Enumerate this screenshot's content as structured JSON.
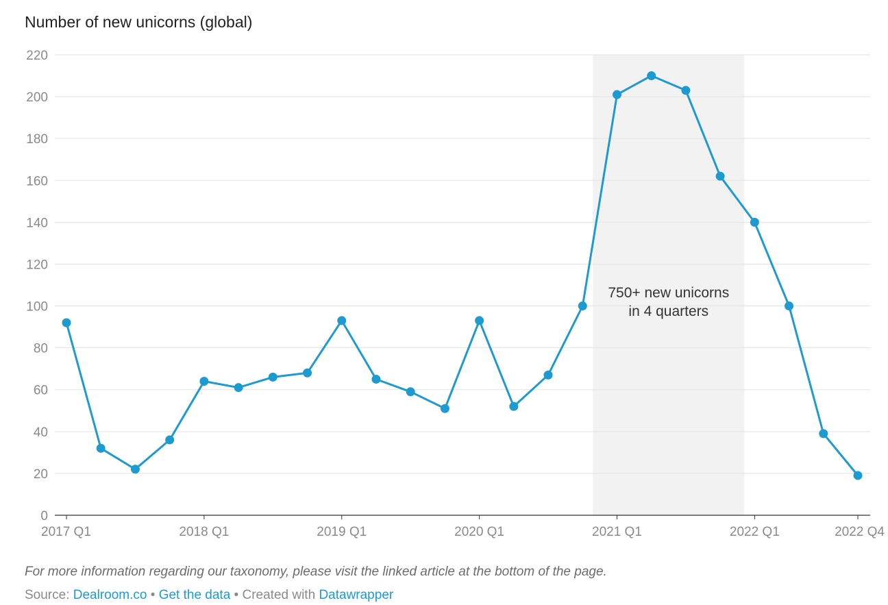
{
  "title": "Number of new unicorns (global)",
  "footnote": "For more information regarding our taxonomy, please visit the linked article at the bottom of the page.",
  "source": {
    "prefix": "Source: ",
    "source_link": "Dealroom.co",
    "separator1": " • ",
    "data_link": "Get the data",
    "separator2": " • Created with ",
    "tool_link": "Datawrapper"
  },
  "colors": {
    "line": "#1d9bd1",
    "highlight_band": "#f2f2f2",
    "grid": "#e3e3e3",
    "axis": "#333333",
    "link": "#1d9bd1"
  },
  "chart_data": {
    "type": "line",
    "title": "Number of new unicorns (global)",
    "xlabel": "",
    "ylabel": "",
    "ylim": [
      0,
      220
    ],
    "yticks": [
      0,
      20,
      40,
      60,
      80,
      100,
      120,
      140,
      160,
      180,
      200,
      220
    ],
    "grid": true,
    "x": [
      "2017 Q1",
      "2017 Q2",
      "2017 Q3",
      "2017 Q4",
      "2018 Q1",
      "2018 Q2",
      "2018 Q3",
      "2018 Q4",
      "2019 Q1",
      "2019 Q2",
      "2019 Q3",
      "2019 Q4",
      "2020 Q1",
      "2020 Q2",
      "2020 Q3",
      "2020 Q4",
      "2021 Q1",
      "2021 Q2",
      "2021 Q3",
      "2021 Q4",
      "2022 Q1",
      "2022 Q2",
      "2022 Q3",
      "2022 Q4"
    ],
    "xtick_labels": [
      {
        "label": "2017 Q1",
        "index": 0
      },
      {
        "label": "2018 Q1",
        "index": 4
      },
      {
        "label": "2019 Q1",
        "index": 8
      },
      {
        "label": "2020 Q1",
        "index": 12
      },
      {
        "label": "2021 Q1",
        "index": 16
      },
      {
        "label": "2022 Q1",
        "index": 20
      },
      {
        "label": "2022 Q4",
        "index": 23
      }
    ],
    "series": [
      {
        "values": [
          92,
          32,
          22,
          36,
          64,
          61,
          66,
          68,
          93,
          65,
          59,
          51,
          93,
          52,
          67,
          100,
          201,
          210,
          203,
          162,
          140,
          100,
          39,
          19
        ]
      }
    ],
    "highlight_range": {
      "from": "2021 Q1",
      "to": "2021 Q4"
    },
    "annotation": {
      "line1": "750+ new unicorns",
      "line2": "in 4 quarters"
    }
  }
}
